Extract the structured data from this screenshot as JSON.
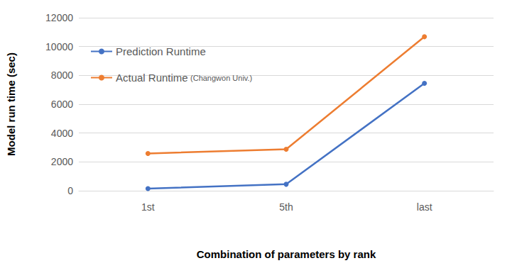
{
  "chart_data": {
    "type": "line",
    "x_label": "Combination of parameters by rank",
    "y_label": "Model run time (sec)",
    "categories": [
      "1st",
      "5th",
      "last"
    ],
    "series": [
      {
        "name": "Prediction Runtime",
        "color": "#4472c4",
        "marker": "circle",
        "values": [
          150,
          450,
          7450
        ]
      },
      {
        "name": "Actual Runtime (Changwon Univ.)",
        "color": "#ed7d31",
        "marker": "circle",
        "values": [
          2580,
          2880,
          10680
        ]
      }
    ],
    "ylim": [
      0,
      12000
    ],
    "yticks": [
      0,
      2000,
      4000,
      6000,
      8000,
      10000,
      12000
    ],
    "grid": true,
    "legend": "top-left"
  }
}
